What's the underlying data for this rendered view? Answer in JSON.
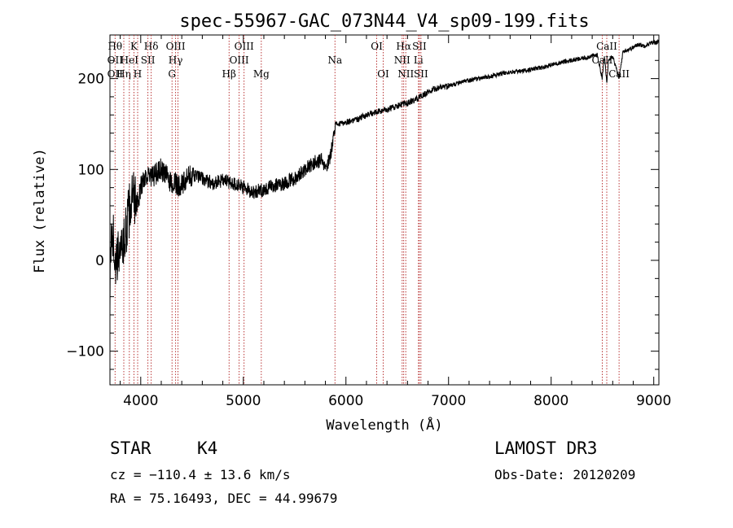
{
  "chart_data": {
    "type": "line",
    "title": "spec-55967-GAC_073N44_V4_sp09-199.fits",
    "xlabel": "Wavelength (Å)",
    "ylabel": "Flux (relative)",
    "xlim": [
      3700,
      9050
    ],
    "ylim": [
      -137,
      248
    ],
    "xticks": [
      4000,
      5000,
      6000,
      7000,
      8000,
      9000
    ],
    "xtick_labels": [
      "4000",
      "5000",
      "6000",
      "7000",
      "8000",
      "9000"
    ],
    "yticks": [
      -100,
      0,
      100,
      200
    ],
    "ytick_labels": [
      "−100",
      "0",
      "100",
      "200"
    ],
    "spectrum_anchors": {
      "x": [
        3700,
        3720,
        3760,
        3800,
        3840,
        3880,
        3920,
        3960,
        4000,
        4050,
        4100,
        4200,
        4300,
        4400,
        4500,
        4600,
        4700,
        4800,
        4900,
        5000,
        5100,
        5200,
        5300,
        5400,
        5500,
        5600,
        5700,
        5760,
        5800,
        5850,
        5880,
        5900,
        5950,
        6000,
        6100,
        6200,
        6300,
        6400,
        6500,
        6600,
        6700,
        6800,
        6900,
        7000,
        7100,
        7200,
        7300,
        7400,
        7500,
        7600,
        7700,
        7800,
        7900,
        8000,
        8100,
        8200,
        8300,
        8400,
        8450,
        8498,
        8520,
        8542,
        8560,
        8600,
        8662,
        8700,
        8750,
        8800,
        8850,
        8900,
        8950,
        9000
      ],
      "y": [
        -30,
        40,
        -10,
        20,
        20,
        50,
        70,
        60,
        80,
        95,
        90,
        100,
        85,
        82,
        95,
        90,
        85,
        88,
        85,
        80,
        75,
        78,
        82,
        85,
        90,
        100,
        108,
        110,
        100,
        115,
        140,
        150,
        150,
        152,
        155,
        160,
        163,
        166,
        170,
        173,
        178,
        185,
        190,
        192,
        195,
        198,
        200,
        202,
        205,
        207,
        208,
        210,
        212,
        215,
        218,
        220,
        222,
        225,
        226,
        200,
        225,
        195,
        222,
        225,
        200,
        230,
        232,
        234,
        238,
        236,
        238,
        240
      ]
    },
    "lines": [
      {
        "x": 3750,
        "labels": [
          "Hθ",
          "OII",
          "OII"
        ],
        "rows": [
          0,
          1,
          2
        ]
      },
      {
        "x": 3835,
        "labels": [
          "Hη"
        ],
        "rows": [
          2
        ]
      },
      {
        "x": 3889,
        "labels": [
          "HeI"
        ],
        "rows": [
          1
        ]
      },
      {
        "x": 3934,
        "labels": [
          "K"
        ],
        "rows": [
          0
        ]
      },
      {
        "x": 3970,
        "labels": [
          "H"
        ],
        "rows": [
          2
        ]
      },
      {
        "x": 4070,
        "labels": [
          "SII"
        ],
        "rows": [
          1
        ]
      },
      {
        "x": 4102,
        "labels": [
          "Hδ"
        ],
        "rows": [
          0
        ]
      },
      {
        "x": 4305,
        "labels": [
          "G"
        ],
        "rows": [
          2
        ]
      },
      {
        "x": 4340,
        "labels": [
          "Hγ",
          "OIII"
        ],
        "rows": [
          1,
          0
        ]
      },
      {
        "x": 4363,
        "labels": [],
        "rows": []
      },
      {
        "x": 4861,
        "labels": [
          "Hβ"
        ],
        "rows": [
          2
        ]
      },
      {
        "x": 4959,
        "labels": [
          "OIII"
        ],
        "rows": [
          1
        ]
      },
      {
        "x": 5007,
        "labels": [
          "OIII"
        ],
        "rows": [
          0
        ]
      },
      {
        "x": 5175,
        "labels": [
          "Mg"
        ],
        "rows": [
          2
        ]
      },
      {
        "x": 5893,
        "labels": [
          "Na"
        ],
        "rows": [
          1
        ]
      },
      {
        "x": 6300,
        "labels": [
          "OI"
        ],
        "rows": [
          0
        ]
      },
      {
        "x": 6363,
        "labels": [
          "OI"
        ],
        "rows": [
          2
        ]
      },
      {
        "x": 6548,
        "labels": [
          "NII"
        ],
        "rows": [
          1
        ]
      },
      {
        "x": 6563,
        "labels": [
          "Hα"
        ],
        "rows": [
          0
        ]
      },
      {
        "x": 6583,
        "labels": [
          "NII"
        ],
        "rows": [
          2
        ]
      },
      {
        "x": 6707,
        "labels": [
          "Li"
        ],
        "rows": [
          1
        ]
      },
      {
        "x": 6716,
        "labels": [
          "SII"
        ],
        "rows": [
          0
        ]
      },
      {
        "x": 6731,
        "labels": [
          "SII"
        ],
        "rows": [
          2
        ]
      },
      {
        "x": 8498,
        "labels": [
          "CaII"
        ],
        "rows": [
          1
        ]
      },
      {
        "x": 8542,
        "labels": [
          "CaII"
        ],
        "rows": [
          0
        ]
      },
      {
        "x": 8662,
        "labels": [
          "CaII"
        ],
        "rows": [
          2
        ]
      }
    ]
  },
  "info": {
    "object_class": "STAR",
    "subclass": "K4",
    "survey": "LAMOST DR3",
    "cz": "cz = −110.4 ± 13.6 km/s",
    "obs_date": "Obs-Date: 20120209",
    "coords": "RA =  75.16493, DEC =  44.99679"
  }
}
